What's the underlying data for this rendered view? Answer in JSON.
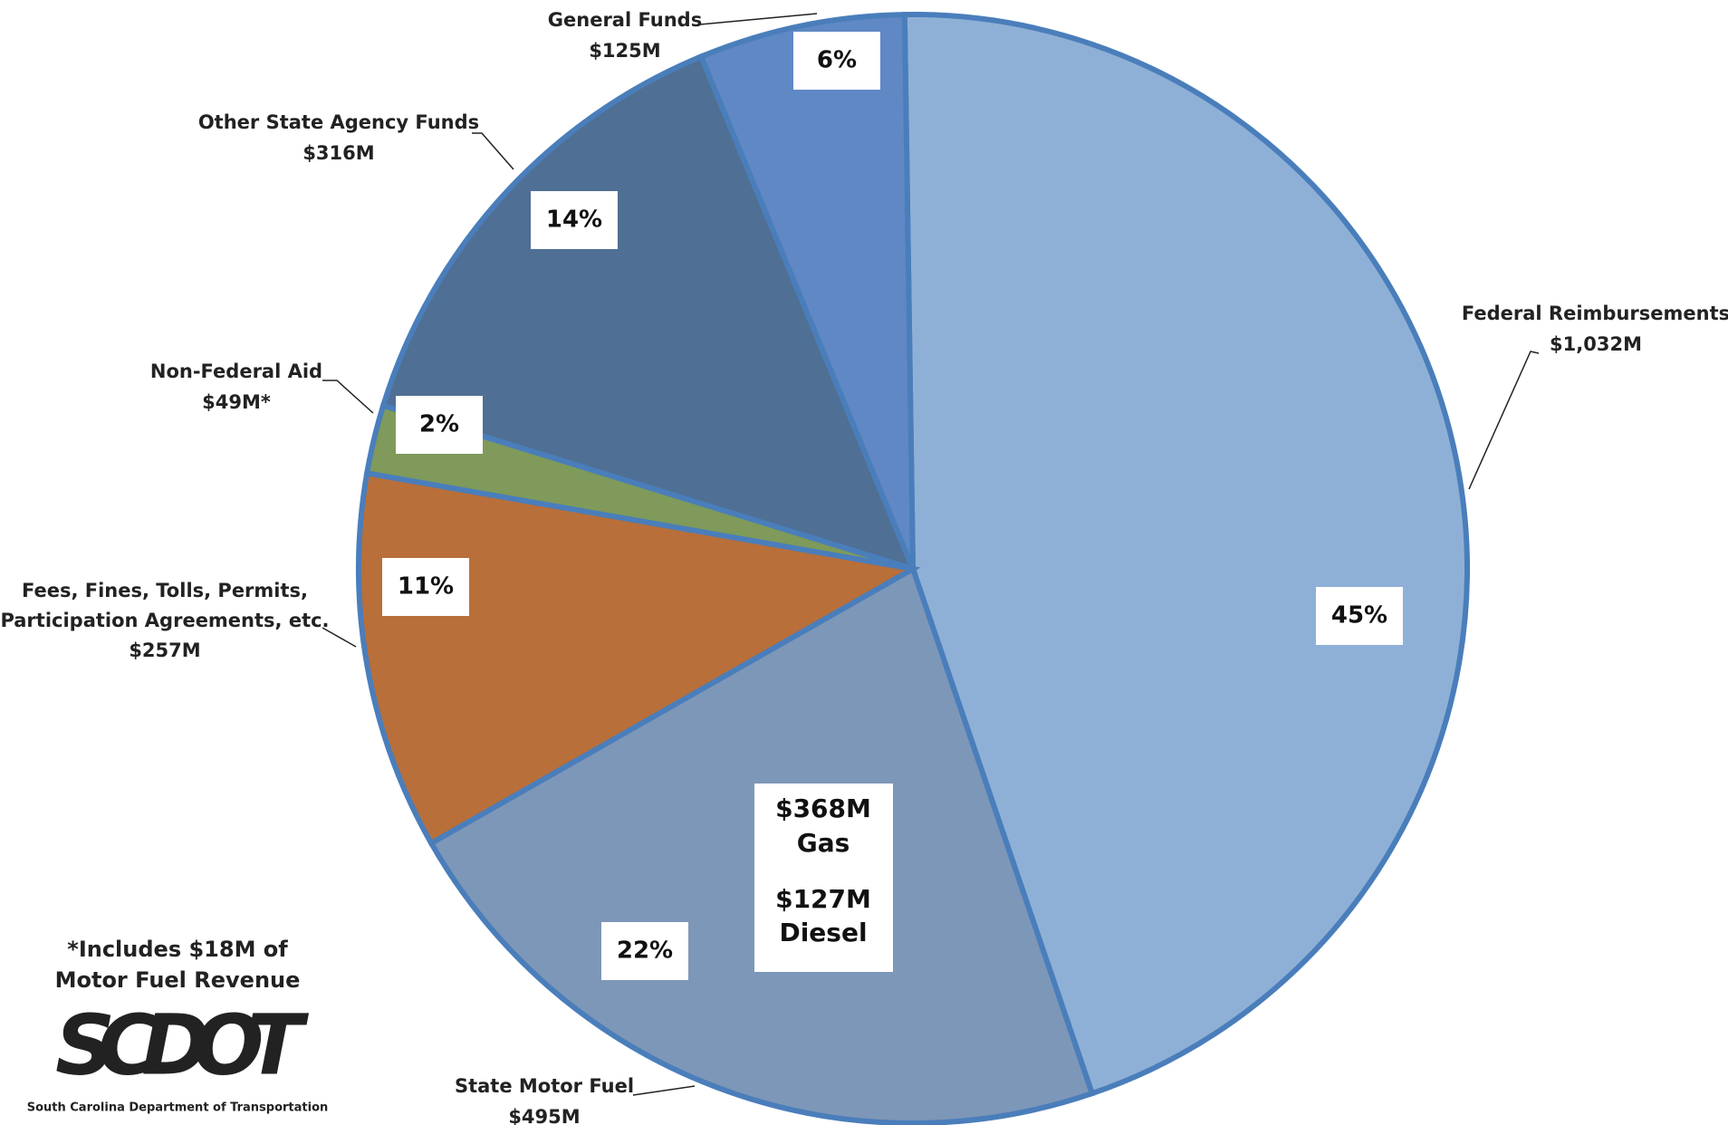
{
  "chart_data": {
    "type": "pie",
    "categories": [
      "Federal Reimbursements",
      "State Motor Fuel",
      "Fees, Fines, Tolls, Permits, Participation Agreements, etc.",
      "Non-Federal Aid",
      "Other State Agency Funds",
      "General Funds"
    ],
    "values": [
      45,
      22,
      11,
      2,
      14,
      6
    ],
    "value_labels": [
      "45%",
      "22%",
      "11%",
      "2%",
      "14%",
      "6%"
    ],
    "amount_labels": [
      "$1,032M",
      "$495M",
      "$257M",
      "$49M*",
      "$316M",
      "$125M"
    ],
    "colors": [
      "#8fb0d6",
      "#7d97b8",
      "#b86f3a",
      "#7f9a5a",
      "#4f6f94",
      "#5f88c4"
    ],
    "annotations": {
      "fuel_breakdown": [
        "$368M",
        "Gas",
        "$127M",
        "Diesel"
      ],
      "footnote": [
        "*Includes $18M of Motor Fuel Revenue"
      ],
      "logo": "SCDOT",
      "logo_subtitle": "South Carolina Department of Transportation"
    }
  }
}
